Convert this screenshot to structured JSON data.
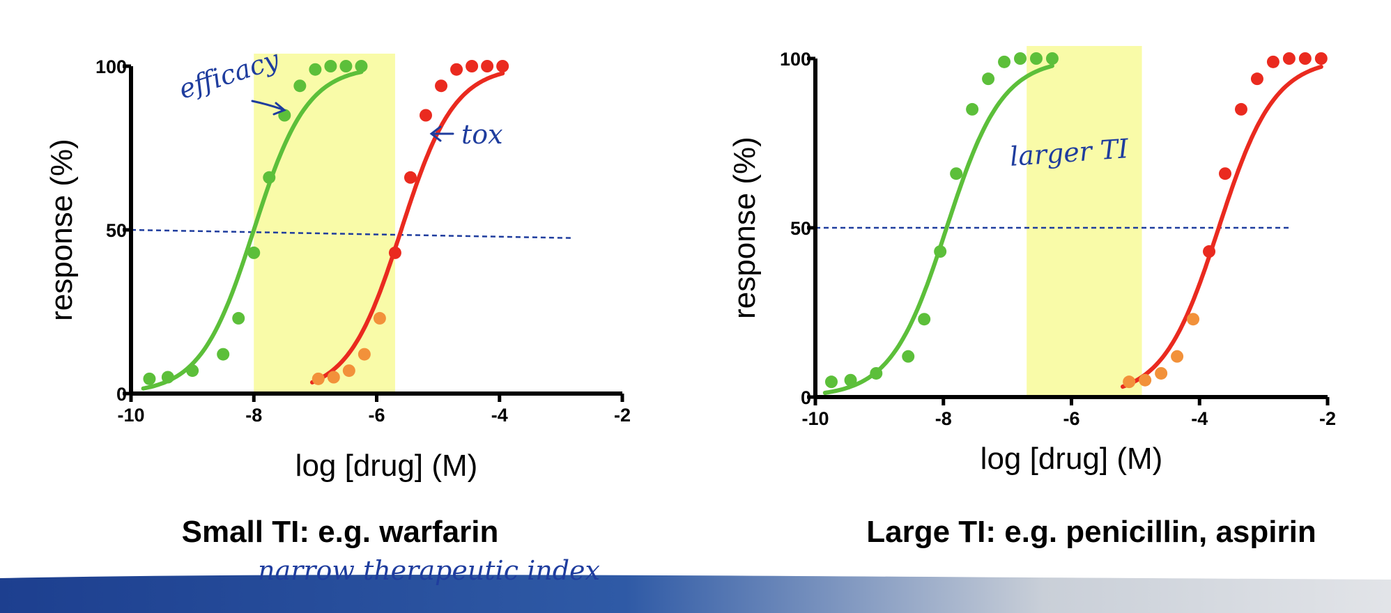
{
  "chart_data": [
    {
      "type": "line",
      "title": "Small TI: e.g. warfarin",
      "xlabel": "log [drug] (M)",
      "ylabel": "response (%)",
      "xlim": [
        -10,
        -2
      ],
      "ylim": [
        0,
        100
      ],
      "x_ticks": [
        -10,
        -8,
        -6,
        -4,
        -2
      ],
      "y_ticks": [
        0,
        50,
        100
      ],
      "therapeutic_window": {
        "x_start": -8.0,
        "x_end": -5.7,
        "color": "#f9fba8"
      },
      "reference_line": {
        "y_start": 50,
        "y_end": 47.5,
        "x_start": -10,
        "x_end": -2.8,
        "color": "#1f3d9e"
      },
      "series": [
        {
          "name": "efficacy",
          "color": "#5cbf3a",
          "ec50_log": -8.0,
          "hill": 1.0,
          "x": [
            -9.7,
            -9.4,
            -9.0,
            -8.5,
            -8.25,
            -8.0,
            -7.75,
            -7.5,
            -7.25,
            -7.0,
            -6.75,
            -6.5,
            -6.25
          ],
          "y": [
            4.5,
            5,
            7,
            12,
            23,
            43,
            66,
            85,
            94,
            99,
            100,
            100,
            100
          ]
        },
        {
          "name": "tox",
          "color": "#ea2a1f",
          "low_color": "#f2913a",
          "ec50_log": -5.6,
          "hill": 1.0,
          "x": [
            -6.95,
            -6.7,
            -6.45,
            -6.2,
            -5.95,
            -5.7,
            -5.45,
            -5.2,
            -4.95,
            -4.7,
            -4.45,
            -4.2,
            -3.95
          ],
          "y": [
            4.5,
            5,
            7,
            12,
            23,
            43,
            66,
            85,
            94,
            99,
            100,
            100,
            100
          ]
        }
      ],
      "annotations": {
        "efficacy": "efficacy",
        "tox": "tox",
        "caption_note": "narrow therapeutic index"
      }
    },
    {
      "type": "line",
      "title": "Large TI: e.g. penicillin, aspirin",
      "xlabel": "log [drug] (M)",
      "ylabel": "response (%)",
      "xlim": [
        -10,
        -2
      ],
      "ylim": [
        0,
        100
      ],
      "x_ticks": [
        -10,
        -8,
        -6,
        -4,
        -2
      ],
      "y_ticks": [
        0,
        50,
        100
      ],
      "therapeutic_window": {
        "x_start": -6.7,
        "x_end": -4.9,
        "color": "#f9fba8"
      },
      "reference_line": {
        "y_start": 50,
        "y_end": 50,
        "x_start": -10,
        "x_end": -2.6,
        "color": "#1f3d9e"
      },
      "series": [
        {
          "name": "efficacy",
          "color": "#5cbf3a",
          "ec50_log": -7.95,
          "hill": 1.0,
          "x": [
            -9.75,
            -9.45,
            -9.05,
            -8.55,
            -8.3,
            -8.05,
            -7.8,
            -7.55,
            -7.3,
            -7.05,
            -6.8,
            -6.55,
            -6.3
          ],
          "y": [
            4.5,
            5,
            7,
            12,
            23,
            43,
            66,
            85,
            94,
            99,
            100,
            100,
            100
          ]
        },
        {
          "name": "tox",
          "color": "#ea2a1f",
          "low_color": "#f2913a",
          "ec50_log": -3.7,
          "hill": 1.0,
          "x": [
            -5.1,
            -4.85,
            -4.6,
            -4.35,
            -4.1,
            -3.85,
            -3.6,
            -3.35,
            -3.1,
            -2.85,
            -2.6,
            -2.35,
            -2.1
          ],
          "y": [
            4.5,
            5,
            7,
            12,
            23,
            43,
            66,
            85,
            94,
            99,
            100,
            100,
            100
          ]
        }
      ],
      "annotations": {
        "window": "larger TI"
      }
    }
  ],
  "footer_colors": {
    "band_dark": "#1d3f8f",
    "band_light": "#d3d6dc"
  }
}
